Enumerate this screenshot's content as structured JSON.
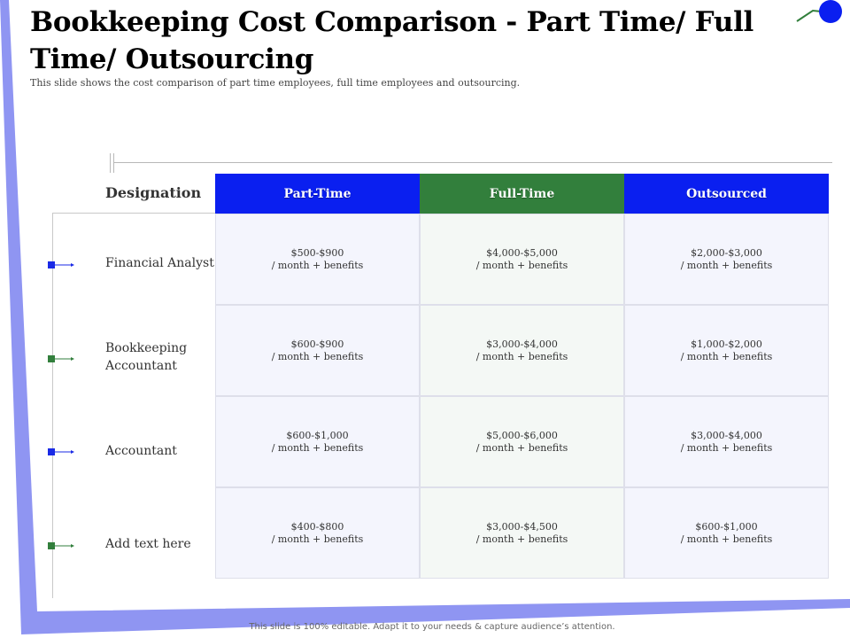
{
  "title": "Bookkeeping Cost Comparison - Part Time/ Full Time/ Outsourcing",
  "subtitle": "This slide shows the cost comparison of part time employees, full time employees and outsourcing.",
  "table": {
    "corner_label": "Designation",
    "columns": [
      "Part-Time",
      "Full-Time",
      "Outsourced"
    ],
    "rows": [
      {
        "designation": "Financial Analyst",
        "marker_color": "#1a2ae6",
        "cells": [
          {
            "range": "$500-$900",
            "note": "/ month + benefits"
          },
          {
            "range": "$4,000-$5,000",
            "note": "/ month + benefits"
          },
          {
            "range": "$2,000-$3,000",
            "note": "/ month + benefits"
          }
        ]
      },
      {
        "designation": "Bookkeeping Accountant",
        "marker_color": "#327f3c",
        "cells": [
          {
            "range": "$600-$900",
            "note": "/ month + benefits"
          },
          {
            "range": "$3,000-$4,000",
            "note": "/ month + benefits"
          },
          {
            "range": "$1,000-$2,000",
            "note": "/ month + benefits"
          }
        ]
      },
      {
        "designation": "Accountant",
        "marker_color": "#1a2ae6",
        "cells": [
          {
            "range": "$600-$1,000",
            "note": "/ month + benefits"
          },
          {
            "range": "$5,000-$6,000",
            "note": "/ month + benefits"
          },
          {
            "range": "$3,000-$4,000",
            "note": "/ month + benefits"
          }
        ]
      },
      {
        "designation": "Add text here",
        "marker_color": "#327f3c",
        "cells": [
          {
            "range": "$400-$800",
            "note": "/ month + benefits"
          },
          {
            "range": "$3,000-$4,500",
            "note": "/ month + benefits"
          },
          {
            "range": "$600-$1,000",
            "note": "/ month + benefits"
          }
        ]
      }
    ]
  },
  "footer": "This slide is 100% editable. Adapt it to your needs & capture audience’s attention.",
  "colors": {
    "blue": "#0a1ff0",
    "green": "#327f3c",
    "frame": "#8f95f2"
  }
}
